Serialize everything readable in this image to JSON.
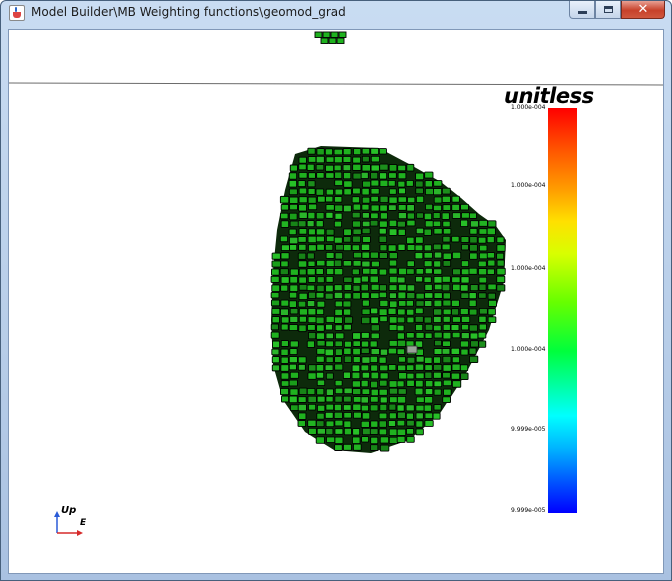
{
  "window": {
    "title": "Model Builder\\MB Weighting functions\\geomod_grad",
    "app_icon": "java-icon",
    "controls": {
      "minimize_icon": "minimize-icon",
      "maximize_icon": "maximize-icon",
      "close_icon": "close-icon"
    }
  },
  "viewport": {
    "scene": "3D voxel model, green cells with black outlines",
    "voxel_color": "#1fb21f",
    "edge_color": "#000000",
    "background": "#ffffff"
  },
  "legend": {
    "title": "unitless",
    "colormap": [
      "#0000ff",
      "#00ffff",
      "#00ff00",
      "#ffff00",
      "#ff0000"
    ],
    "ticks": [
      "1.000e-004",
      "1.000e-004",
      "1.000e-004",
      "1.000e-004",
      "9.999e-005",
      "9.999e-005"
    ]
  },
  "orientation": {
    "up_label": "Up",
    "east_label": "E",
    "up_color": "#2a5bd7",
    "east_color": "#d62a2a"
  }
}
